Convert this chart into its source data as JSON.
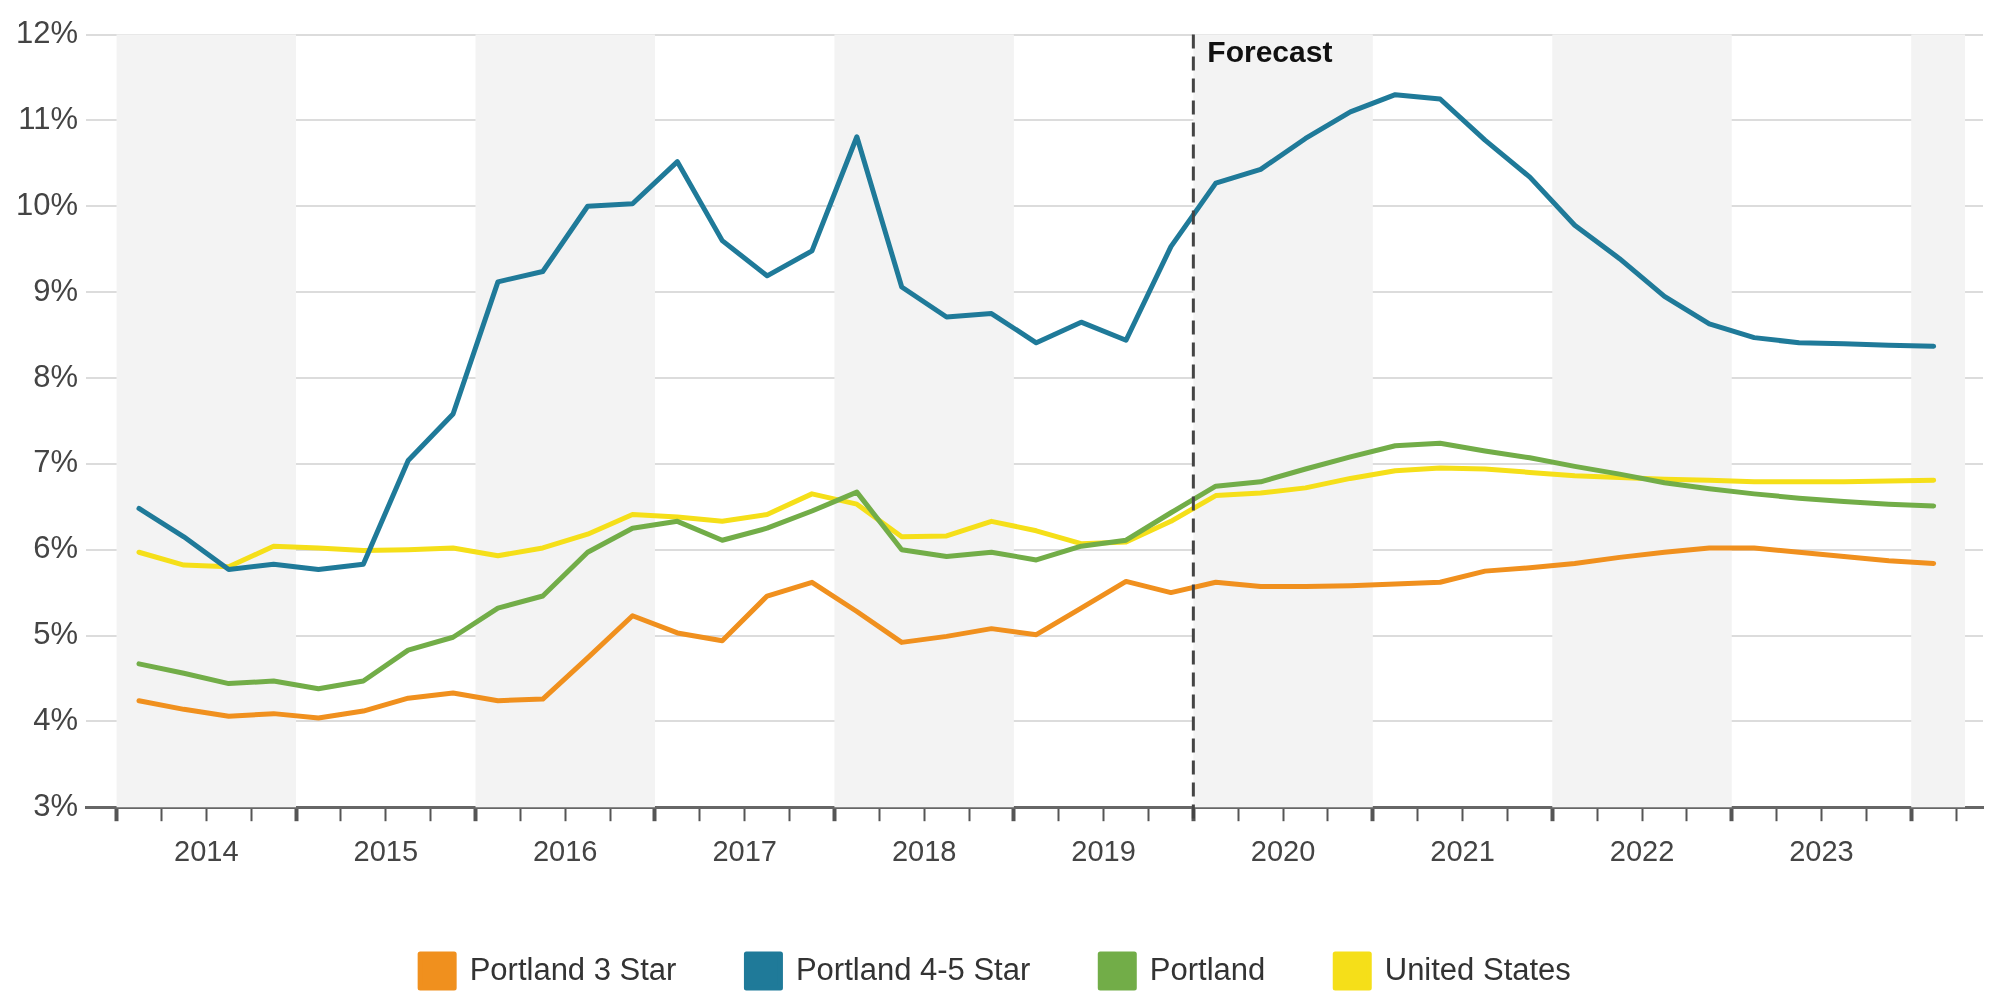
{
  "chart_data": {
    "type": "line",
    "x": [
      2014.125,
      2014.375,
      2014.625,
      2014.875,
      2015.125,
      2015.375,
      2015.625,
      2015.875,
      2016.125,
      2016.375,
      2016.625,
      2016.875,
      2017.125,
      2017.375,
      2017.625,
      2017.875,
      2018.125,
      2018.375,
      2018.625,
      2018.875,
      2019.125,
      2019.375,
      2019.625,
      2019.875,
      2020.125,
      2020.375,
      2020.625,
      2020.875,
      2021.125,
      2021.375,
      2021.625,
      2021.875,
      2022.125,
      2022.375,
      2022.625,
      2022.875,
      2023.125,
      2023.375,
      2023.625,
      2023.875,
      2024.125
    ],
    "series": [
      {
        "name": "Portland 3 Star",
        "color": "#f0901e",
        "values": [
          4.24,
          4.14,
          4.06,
          4.09,
          4.04,
          4.12,
          4.27,
          4.33,
          4.24,
          4.26,
          4.74,
          5.23,
          5.03,
          4.94,
          5.46,
          5.62,
          5.28,
          4.92,
          4.99,
          5.08,
          5.01,
          5.32,
          5.63,
          5.5,
          5.62,
          5.57,
          5.57,
          5.58,
          5.6,
          5.62,
          5.75,
          5.79,
          5.84,
          5.91,
          5.97,
          6.02,
          6.02,
          5.97,
          5.92,
          5.87,
          5.84
        ]
      },
      {
        "name": "Portland 4-5 Star",
        "color": "#1f7a99",
        "values": [
          6.48,
          6.15,
          5.77,
          5.83,
          5.77,
          5.83,
          7.04,
          7.58,
          9.12,
          9.24,
          10.0,
          10.03,
          10.52,
          9.6,
          9.19,
          9.48,
          10.81,
          9.06,
          8.71,
          8.75,
          8.41,
          8.65,
          8.44,
          9.53,
          10.27,
          10.43,
          10.79,
          11.1,
          11.3,
          11.25,
          10.77,
          10.34,
          9.78,
          9.39,
          8.95,
          8.63,
          8.47,
          8.41,
          8.4,
          8.38,
          8.37
        ]
      },
      {
        "name": "Portland",
        "color": "#72ad48",
        "values": [
          4.67,
          4.56,
          4.44,
          4.47,
          4.38,
          4.47,
          4.83,
          4.98,
          5.32,
          5.46,
          5.97,
          6.25,
          6.33,
          6.11,
          6.25,
          6.45,
          6.67,
          6.0,
          5.92,
          5.97,
          5.88,
          6.04,
          6.11,
          6.43,
          6.74,
          6.79,
          6.94,
          7.08,
          7.21,
          7.24,
          7.15,
          7.07,
          6.97,
          6.88,
          6.78,
          6.71,
          6.65,
          6.6,
          6.56,
          6.53,
          6.51
        ]
      },
      {
        "name": "United States",
        "color": "#f5df19",
        "values": [
          5.97,
          5.82,
          5.8,
          6.04,
          6.02,
          5.99,
          6.0,
          6.02,
          5.93,
          6.02,
          6.18,
          6.41,
          6.38,
          6.33,
          6.41,
          6.65,
          6.53,
          6.15,
          6.16,
          6.33,
          6.22,
          6.07,
          6.09,
          6.33,
          6.63,
          6.66,
          6.72,
          6.83,
          6.92,
          6.95,
          6.94,
          6.9,
          6.86,
          6.84,
          6.82,
          6.81,
          6.79,
          6.79,
          6.79,
          6.8,
          6.81
        ]
      }
    ],
    "xlim": [
      2013.83,
      2024.4
    ],
    "xticks": [
      {
        "value": 2014,
        "label": null
      },
      {
        "value": 2014.25,
        "label": null
      },
      {
        "value": 2014.5,
        "label": "2014"
      },
      {
        "value": 2014.75,
        "label": null
      },
      {
        "value": 2015,
        "label": null
      },
      {
        "value": 2015.25,
        "label": null
      },
      {
        "value": 2015.5,
        "label": "2015"
      },
      {
        "value": 2015.75,
        "label": null
      },
      {
        "value": 2016,
        "label": null
      },
      {
        "value": 2016.25,
        "label": null
      },
      {
        "value": 2016.5,
        "label": "2016"
      },
      {
        "value": 2016.75,
        "label": null
      },
      {
        "value": 2017,
        "label": null
      },
      {
        "value": 2017.25,
        "label": null
      },
      {
        "value": 2017.5,
        "label": "2017"
      },
      {
        "value": 2017.75,
        "label": null
      },
      {
        "value": 2018,
        "label": null
      },
      {
        "value": 2018.25,
        "label": null
      },
      {
        "value": 2018.5,
        "label": "2018"
      },
      {
        "value": 2018.75,
        "label": null
      },
      {
        "value": 2019,
        "label": null
      },
      {
        "value": 2019.25,
        "label": null
      },
      {
        "value": 2019.5,
        "label": "2019"
      },
      {
        "value": 2019.75,
        "label": null
      },
      {
        "value": 2020,
        "label": null
      },
      {
        "value": 2020.25,
        "label": null
      },
      {
        "value": 2020.5,
        "label": "2020"
      },
      {
        "value": 2020.75,
        "label": null
      },
      {
        "value": 2021,
        "label": null
      },
      {
        "value": 2021.25,
        "label": null
      },
      {
        "value": 2021.5,
        "label": "2021"
      },
      {
        "value": 2021.75,
        "label": null
      },
      {
        "value": 2022,
        "label": null
      },
      {
        "value": 2022.25,
        "label": null
      },
      {
        "value": 2022.5,
        "label": "2022"
      },
      {
        "value": 2022.75,
        "label": null
      },
      {
        "value": 2023,
        "label": null
      },
      {
        "value": 2023.25,
        "label": null
      },
      {
        "value": 2023.5,
        "label": "2023"
      },
      {
        "value": 2023.75,
        "label": null
      },
      {
        "value": 2024,
        "label": null
      },
      {
        "value": 2024.25,
        "label": null
      }
    ],
    "ylim": [
      3,
      12
    ],
    "yticks": [
      {
        "value": 3,
        "label": "3%"
      },
      {
        "value": 4,
        "label": "4%"
      },
      {
        "value": 5,
        "label": "5%"
      },
      {
        "value": 6,
        "label": "6%"
      },
      {
        "value": 7,
        "label": "7%"
      },
      {
        "value": 8,
        "label": "8%"
      },
      {
        "value": 9,
        "label": "9%"
      },
      {
        "value": 10,
        "label": "10%"
      },
      {
        "value": 11,
        "label": "11%"
      },
      {
        "value": 12,
        "label": "12%"
      }
    ],
    "grid": "y",
    "legend": "bottom",
    "marker": "none",
    "line_style": "solid",
    "ref_lines": [
      {
        "axis": "x",
        "value": 2020,
        "label": "Forecast",
        "color": "#444444",
        "line_style": "dashed"
      }
    ],
    "bands": [
      {
        "axis": "x",
        "from": 2014,
        "to": 2015,
        "color": "#f3f3f3"
      },
      {
        "axis": "x",
        "from": 2016,
        "to": 2017,
        "color": "#f3f3f3"
      },
      {
        "axis": "x",
        "from": 2018,
        "to": 2019,
        "color": "#f3f3f3"
      },
      {
        "axis": "x",
        "from": 2020,
        "to": 2021,
        "color": "#f3f3f3"
      },
      {
        "axis": "x",
        "from": 2022,
        "to": 2023,
        "color": "#f3f3f3"
      },
      {
        "axis": "x",
        "from": 2024,
        "to": 2024.3,
        "color": "#f3f3f3"
      }
    ]
  }
}
